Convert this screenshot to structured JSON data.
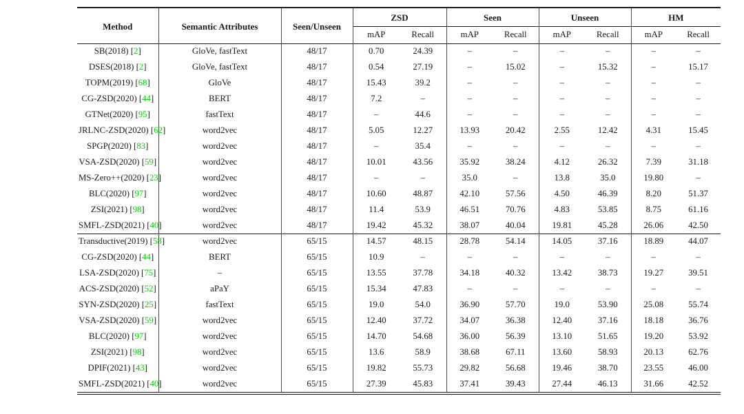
{
  "table": {
    "header": {
      "method": "Method",
      "attributes": "Semantic Attributes",
      "split": "Seen/Unseen",
      "groups": [
        {
          "label": "ZSD"
        },
        {
          "label": "Seen"
        },
        {
          "label": "Unseen"
        },
        {
          "label": "HM"
        }
      ],
      "sub_map": "mAP",
      "sub_recall": "Recall"
    },
    "citation_color": "#00d300",
    "dash": "–",
    "groups": [
      {
        "split_label": "48/17",
        "rows": [
          {
            "method": "SB(2018)",
            "cite": "2",
            "attr": "GloVe, fastText",
            "split": "48/17",
            "vals": [
              "0.70",
              "24.39",
              "–",
              "–",
              "–",
              "–",
              "–",
              "–"
            ]
          },
          {
            "method": "DSES(2018)",
            "cite": "2",
            "attr": "GloVe, fastText",
            "split": "48/17",
            "vals": [
              "0.54",
              "27.19",
              "–",
              "15.02",
              "–",
              "15.32",
              "–",
              "15.17"
            ]
          },
          {
            "method": "TOPM(2019)",
            "cite": "68",
            "attr": "GloVe",
            "split": "48/17",
            "vals": [
              "15.43",
              "39.2",
              "–",
              "–",
              "–",
              "–",
              "–",
              "–"
            ]
          },
          {
            "method": "CG-ZSD(2020)",
            "cite": "44",
            "attr": "BERT",
            "split": "48/17",
            "vals": [
              "7.2",
              "–",
              "–",
              "–",
              "–",
              "–",
              "–",
              "–"
            ]
          },
          {
            "method": "GTNet(2020)",
            "cite": "95",
            "attr": "fastText",
            "split": "48/17",
            "vals": [
              "–",
              "44.6",
              "–",
              "–",
              "–",
              "–",
              "–",
              "–"
            ]
          },
          {
            "method": "JRLNC-ZSD(2020)",
            "cite": "62",
            "attr": "word2vec",
            "split": "48/17",
            "vals": [
              "5.05",
              "12.27",
              "13.93",
              "20.42",
              "2.55",
              "12.42",
              "4.31",
              "15.45"
            ]
          },
          {
            "method": "SPGP(2020)",
            "cite": "83",
            "attr": "word2vec",
            "split": "48/17",
            "vals": [
              "–",
              "35.4",
              "–",
              "–",
              "–",
              "–",
              "–",
              "–"
            ]
          },
          {
            "method": "VSA-ZSD(2020)",
            "cite": "59",
            "attr": "word2vec",
            "split": "48/17",
            "vals": [
              "10.01",
              "43.56",
              "35.92",
              "38.24",
              "4.12",
              "26.32",
              "7.39",
              "31.18"
            ]
          },
          {
            "method": "MS-Zero++(2020)",
            "cite": "23",
            "attr": "word2vec",
            "split": "48/17",
            "vals": [
              "–",
              "–",
              "35.0",
              "–",
              "13.8",
              "35.0",
              "19.80",
              "–"
            ]
          },
          {
            "method": "BLC(2020)",
            "cite": "97",
            "attr": "word2vec",
            "split": "48/17",
            "vals": [
              "10.60",
              "48.87",
              "42.10",
              "57.56",
              "4.50",
              "46.39",
              "8.20",
              "51.37"
            ]
          },
          {
            "method": "ZSI(2021)",
            "cite": "98",
            "attr": "word2vec",
            "split": "48/17",
            "vals": [
              "11.4",
              "53.9",
              "46.51",
              "70.76",
              "4.83",
              "53.85",
              "8.75",
              "61.16"
            ]
          },
          {
            "method": "SMFL-ZSD(2021)",
            "cite": "40",
            "attr": "word2vec",
            "split": "48/17",
            "vals": [
              "19.42",
              "45.32",
              "38.07",
              "40.04",
              "19.81",
              "45.28",
              "26.06",
              "42.50"
            ]
          }
        ]
      },
      {
        "split_label": "65/15",
        "rows": [
          {
            "method": "Transductive(2019)",
            "cite": "58",
            "attr": "word2vec",
            "split": "65/15",
            "vals": [
              "14.57",
              "48.15",
              "28.78",
              "54.14",
              "14.05",
              "37.16",
              "18.89",
              "44.07"
            ]
          },
          {
            "method": "CG-ZSD(2020)",
            "cite": "44",
            "attr": "BERT",
            "split": "65/15",
            "vals": [
              "10.9",
              "–",
              "–",
              "–",
              "–",
              "–",
              "–",
              "–"
            ]
          },
          {
            "method": "LSA-ZSD(2020)",
            "cite": "75",
            "attr": "–",
            "split": "65/15",
            "vals": [
              "13.55",
              "37.78",
              "34.18",
              "40.32",
              "13.42",
              "38.73",
              "19.27",
              "39.51"
            ]
          },
          {
            "method": "ACS-ZSD(2020)",
            "cite": "52",
            "attr": "aPaY",
            "split": "65/15",
            "vals": [
              "15.34",
              "47.83",
              "–",
              "–",
              "–",
              "–",
              "–",
              "–"
            ]
          },
          {
            "method": "SYN-ZSD(2020)",
            "cite": "25",
            "attr": "fastText",
            "split": "65/15",
            "vals": [
              "19.0",
              "54.0",
              "36.90",
              "57.70",
              "19.0",
              "53.90",
              "25.08",
              "55.74"
            ]
          },
          {
            "method": "VSA-ZSD(2020)",
            "cite": "59",
            "attr": "word2vec",
            "split": "65/15",
            "vals": [
              "12.40",
              "37.72",
              "34.07",
              "36.38",
              "12.40",
              "37.16",
              "18.18",
              "36.76"
            ]
          },
          {
            "method": "BLC(2020)",
            "cite": "97",
            "attr": "word2vec",
            "split": "65/15",
            "vals": [
              "14.70",
              "54.68",
              "36.00",
              "56.39",
              "13.10",
              "51.65",
              "19.20",
              "53.92"
            ]
          },
          {
            "method": "ZSI(2021)",
            "cite": "98",
            "attr": "word2vec",
            "split": "65/15",
            "vals": [
              "13.6",
              "58.9",
              "38.68",
              "67.11",
              "13.60",
              "58.93",
              "20.13",
              "62.76"
            ]
          },
          {
            "method": "DPIF(2021)",
            "cite": "43",
            "attr": "word2vec",
            "split": "65/15",
            "vals": [
              "19.82",
              "55.73",
              "29.82",
              "56.68",
              "19.46",
              "38.70",
              "23.55",
              "46.00"
            ]
          },
          {
            "method": "SMFL-ZSD(2021)",
            "cite": "40",
            "attr": "word2vec",
            "split": "65/15",
            "vals": [
              "27.39",
              "45.83",
              "37.41",
              "39.43",
              "27.44",
              "46.13",
              "31.66",
              "42.52"
            ]
          }
        ]
      }
    ]
  }
}
